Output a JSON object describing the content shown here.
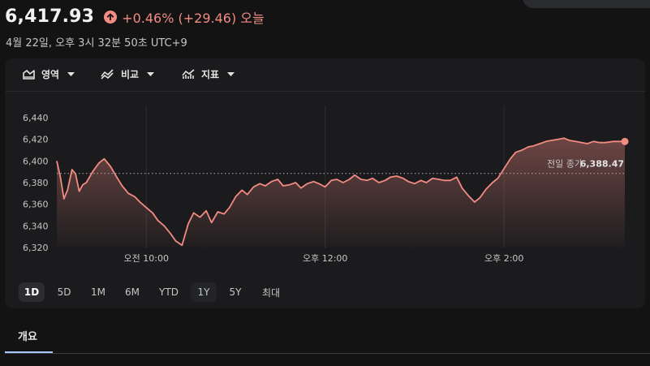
{
  "header": {
    "price": "6,417.93",
    "change": "+0.46% (+29.46) 오늘",
    "timestamp": "4월 22일, 오후 3시 32분 50초 UTC+9"
  },
  "colors": {
    "accent_up": "#f28b82",
    "background": "#131314",
    "panel": "#1b1b1d",
    "tab_indicator": "#a8c7fa"
  },
  "toolbar": {
    "area_label": "영역",
    "compare_label": "비교",
    "indicator_label": "지표"
  },
  "chart_data": {
    "type": "area",
    "prev_close_label": "전일 종가",
    "prev_close_value": "6,388.47",
    "prev_close": 6388.47,
    "ylim": [
      6320,
      6440
    ],
    "y_ticks": [
      "6,440",
      "6,420",
      "6,400",
      "6,380",
      "6,360",
      "6,340",
      "6,320"
    ],
    "x_ticks": [
      "오전 10:00",
      "오후 12:00",
      "오후 2:00"
    ],
    "grid": true,
    "series": [
      {
        "x_hours": [
          9.0,
          9.04,
          9.08,
          9.12,
          9.17,
          9.21,
          9.25,
          9.29,
          9.33,
          9.4,
          9.47,
          9.53,
          9.6,
          9.67,
          9.73,
          9.8,
          9.87,
          9.93,
          10.0,
          10.07,
          10.13,
          10.2,
          10.27,
          10.33,
          10.4,
          10.47,
          10.53,
          10.6,
          10.67,
          10.73,
          10.8,
          10.87,
          10.93,
          11.0,
          11.07,
          11.13,
          11.2,
          11.27,
          11.33,
          11.4,
          11.47,
          11.53,
          11.6,
          11.67,
          11.73,
          11.8,
          11.87,
          11.93,
          12.0,
          12.07,
          12.13,
          12.2,
          12.27,
          12.33,
          12.4,
          12.47,
          12.53,
          12.6,
          12.67,
          12.73,
          12.8,
          12.87,
          12.93,
          13.0,
          13.07,
          13.13,
          13.2,
          13.27,
          13.33,
          13.4,
          13.47,
          13.53,
          13.6,
          13.67,
          13.73,
          13.8,
          13.87,
          13.93,
          14.0,
          14.07,
          14.13,
          14.2,
          14.27,
          14.33,
          14.4,
          14.47,
          14.53,
          14.6,
          14.67,
          14.73,
          14.8,
          14.87,
          14.93,
          15.0,
          15.07,
          15.13,
          15.22,
          15.3,
          15.35
        ],
        "y": [
          6400,
          6385,
          6365,
          6373,
          6392,
          6388,
          6372,
          6378,
          6380,
          6390,
          6398,
          6402,
          6395,
          6385,
          6377,
          6370,
          6367,
          6362,
          6357,
          6352,
          6345,
          6340,
          6333,
          6326,
          6322,
          6342,
          6352,
          6348,
          6354,
          6343,
          6353,
          6351,
          6357,
          6367,
          6373,
          6369,
          6376,
          6379,
          6377,
          6381,
          6383,
          6377,
          6378,
          6380,
          6375,
          6379,
          6381,
          6379,
          6376,
          6382,
          6383,
          6380,
          6383,
          6387,
          6383,
          6382,
          6384,
          6380,
          6382,
          6385,
          6386,
          6384,
          6381,
          6379,
          6382,
          6380,
          6384,
          6383,
          6382,
          6382,
          6385,
          6375,
          6368,
          6362,
          6366,
          6374,
          6380,
          6384,
          6393,
          6402,
          6408,
          6410,
          6413,
          6414,
          6416,
          6418,
          6419,
          6420,
          6421,
          6419,
          6418,
          6417,
          6416,
          6418,
          6417,
          6417,
          6418,
          6418,
          6418
        ]
      }
    ]
  },
  "range_tabs": [
    "1D",
    "5D",
    "1M",
    "6M",
    "YTD",
    "1Y",
    "5Y",
    "최대"
  ],
  "tabs": {
    "overview": "개요"
  }
}
